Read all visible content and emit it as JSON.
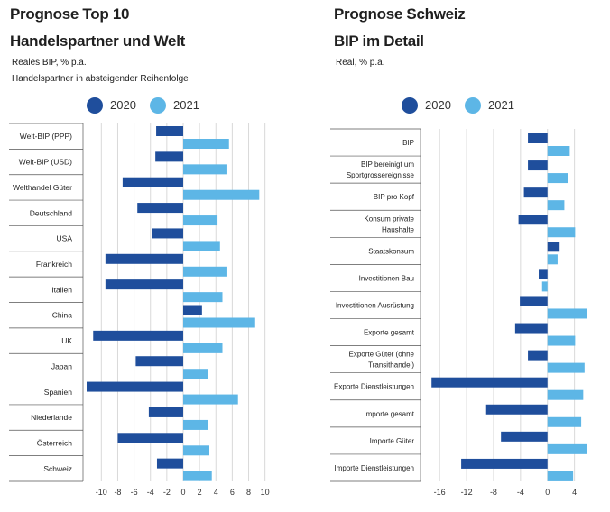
{
  "colors": {
    "c2020": "#1f4e9c",
    "c2021": "#5db6e6"
  },
  "left": {
    "title1": "Prognose Top 10",
    "title2": "Handelspartner und Welt",
    "sub1": "Reales BIP, % p.a.",
    "sub2": "Handelspartner in absteigender Reihenfolge",
    "legend": [
      "2020",
      "2021"
    ]
  },
  "right": {
    "title1": "Prognose Schweiz",
    "title2": "BIP im Detail",
    "sub1": "Real, % p.a.",
    "legend": [
      "2020",
      "2021"
    ]
  },
  "chart_data": [
    {
      "type": "bar",
      "orientation": "horizontal",
      "title": "Prognose Top 10 Handelspartner und Welt",
      "categories": [
        [
          "Welt-BIP (PPP)"
        ],
        [
          "Welt-BIP (USD)"
        ],
        [
          "Welthandel Güter"
        ],
        [
          "Deutschland"
        ],
        [
          "USA"
        ],
        [
          "Frankreich"
        ],
        [
          "Italien"
        ],
        [
          "China"
        ],
        [
          "UK"
        ],
        [
          "Japan"
        ],
        [
          "Spanien"
        ],
        [
          "Niederlande"
        ],
        [
          "Österreich"
        ],
        [
          "Schweiz"
        ]
      ],
      "series": [
        {
          "name": "2020",
          "values": [
            -3.3,
            -3.4,
            -7.4,
            -5.6,
            -3.8,
            -9.5,
            -9.5,
            2.3,
            -11,
            -5.8,
            -11.8,
            -4.2,
            -8,
            -3.2
          ]
        },
        {
          "name": "2021",
          "values": [
            5.6,
            5.4,
            9.3,
            4.2,
            4.5,
            5.4,
            4.8,
            8.8,
            4.8,
            3.0,
            6.7,
            3.0,
            3.2,
            3.5
          ]
        }
      ],
      "xticks": [
        "-10",
        "-8",
        "-6",
        "-4",
        "-2",
        "0",
        "2",
        "4",
        "6",
        "8",
        "10"
      ],
      "xlim": [
        -11.8,
        10.7
      ]
    },
    {
      "type": "bar",
      "orientation": "horizontal",
      "title": "Prognose Schweiz BIP im Detail",
      "categories": [
        [
          "BIP"
        ],
        [
          "BIP bereinigt um",
          "Sportgrossereignisse"
        ],
        [
          "BIP pro Kopf"
        ],
        [
          "Konsum private",
          "Haushalte"
        ],
        [
          "Staatskonsum"
        ],
        [
          "Investitionen Bau"
        ],
        [
          "Investitionen Ausrüstung"
        ],
        [
          "Exporte gesamt"
        ],
        [
          "Exporte Güter (ohne",
          "Transithandel)"
        ],
        [
          "Exporte Dienstleistungen"
        ],
        [
          "Importe gesamt"
        ],
        [
          "Importe Güter"
        ],
        [
          "Importe Dienstleistungen"
        ]
      ],
      "series": [
        {
          "name": "2020",
          "values": [
            -2.9,
            -2.9,
            -3.5,
            -4.3,
            1.8,
            -1.3,
            -4.1,
            -4.8,
            -2.9,
            -17.2,
            -9.1,
            -6.9,
            -12.8
          ]
        },
        {
          "name": "2021",
          "values": [
            3.3,
            3.1,
            2.5,
            4.1,
            1.5,
            -0.8,
            5.9,
            4.1,
            5.5,
            5.3,
            5.0,
            5.8,
            3.8
          ]
        }
      ],
      "xticks": [
        "-16",
        "-12",
        "-8",
        "-4",
        "0",
        "4"
      ],
      "xlim": [
        -18.3,
        8.2
      ]
    }
  ]
}
